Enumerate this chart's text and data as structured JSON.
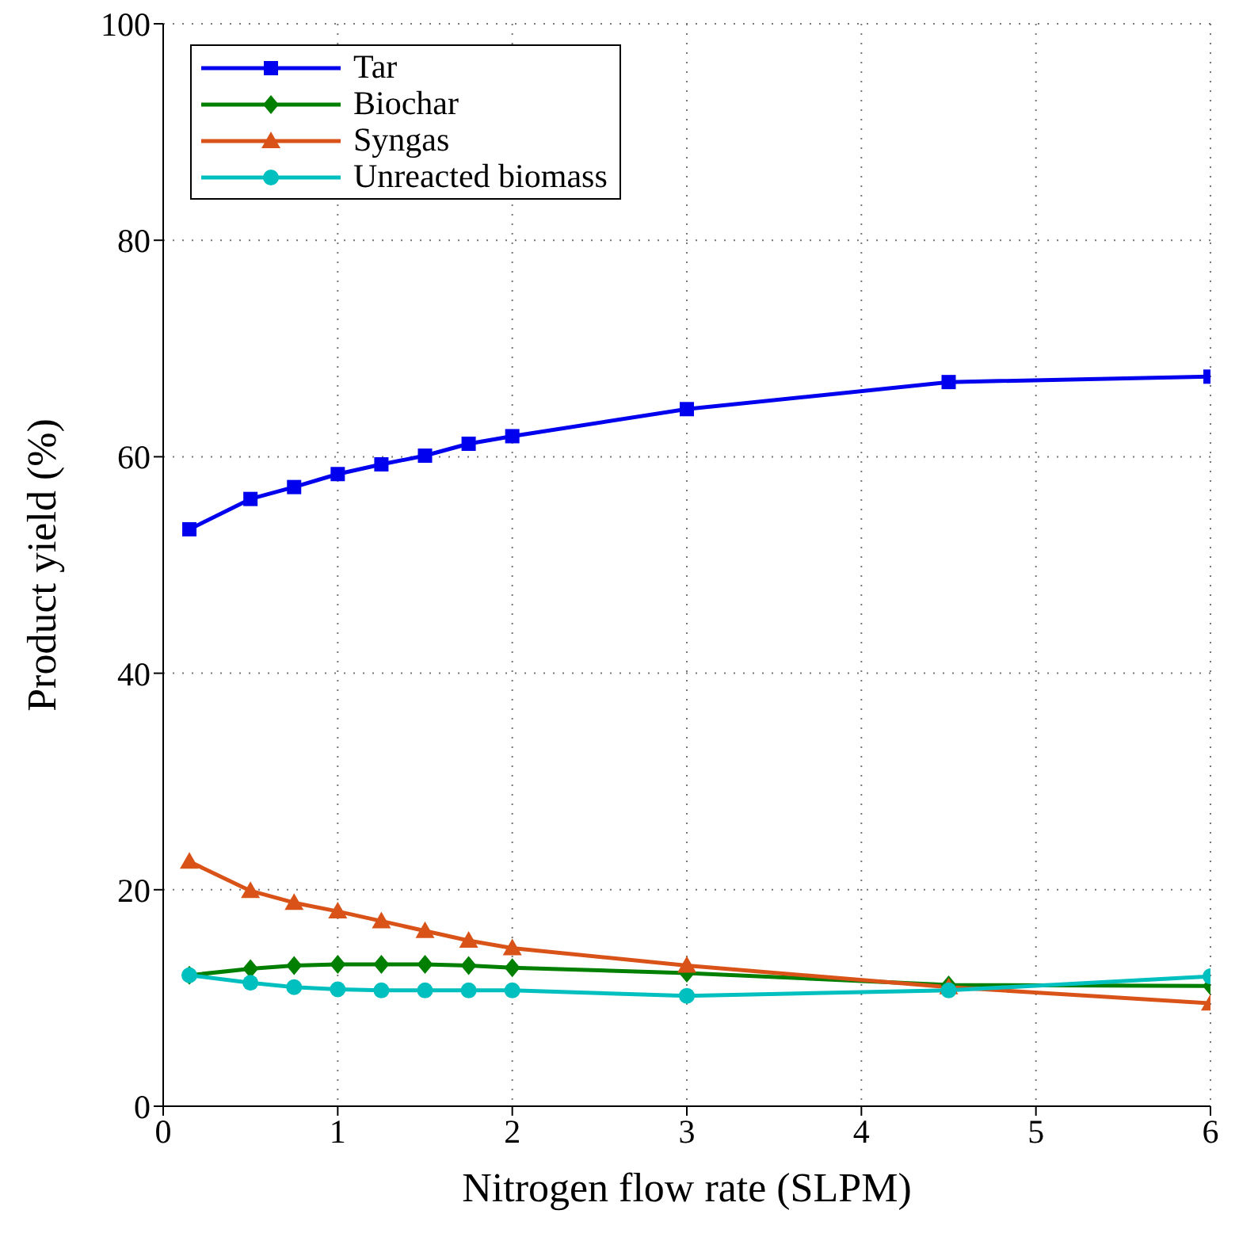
{
  "chart_data": {
    "type": "line",
    "xlabel": "Nitrogen flow rate (SLPM)",
    "ylabel": "Product yield (%)",
    "x": [
      0.15,
      0.5,
      0.75,
      1,
      1.25,
      1.5,
      1.75,
      2,
      3,
      4.5,
      6
    ],
    "series": [
      {
        "name": "Tar",
        "color": "#0000ee",
        "marker": "square",
        "values": [
          53.3,
          56.1,
          57.2,
          58.4,
          59.3,
          60.1,
          61.2,
          61.9,
          64.4,
          66.9,
          67.4
        ]
      },
      {
        "name": "Biochar",
        "color": "#007f00",
        "marker": "diamond",
        "values": [
          12.1,
          12.7,
          13.0,
          13.1,
          13.1,
          13.1,
          13.0,
          12.8,
          12.3,
          11.2,
          11.1
        ]
      },
      {
        "name": "Syngas",
        "color": "#d95319",
        "marker": "triangle",
        "values": [
          22.6,
          19.9,
          18.8,
          18.0,
          17.1,
          16.2,
          15.3,
          14.6,
          13.0,
          11.0,
          9.5
        ]
      },
      {
        "name": "Unreacted biomass",
        "color": "#00bfbf",
        "marker": "circle",
        "values": [
          12.1,
          11.4,
          11.0,
          10.8,
          10.7,
          10.7,
          10.7,
          10.7,
          10.2,
          10.7,
          12.0
        ]
      }
    ],
    "xlim": [
      0,
      6
    ],
    "xticks": [
      0,
      1,
      2,
      3,
      4,
      5,
      6
    ],
    "ylim": [
      0,
      100
    ],
    "yticks": [
      0,
      20,
      40,
      60,
      80,
      100
    ],
    "grid": true,
    "legend": "top left",
    "line_style": "solid"
  }
}
